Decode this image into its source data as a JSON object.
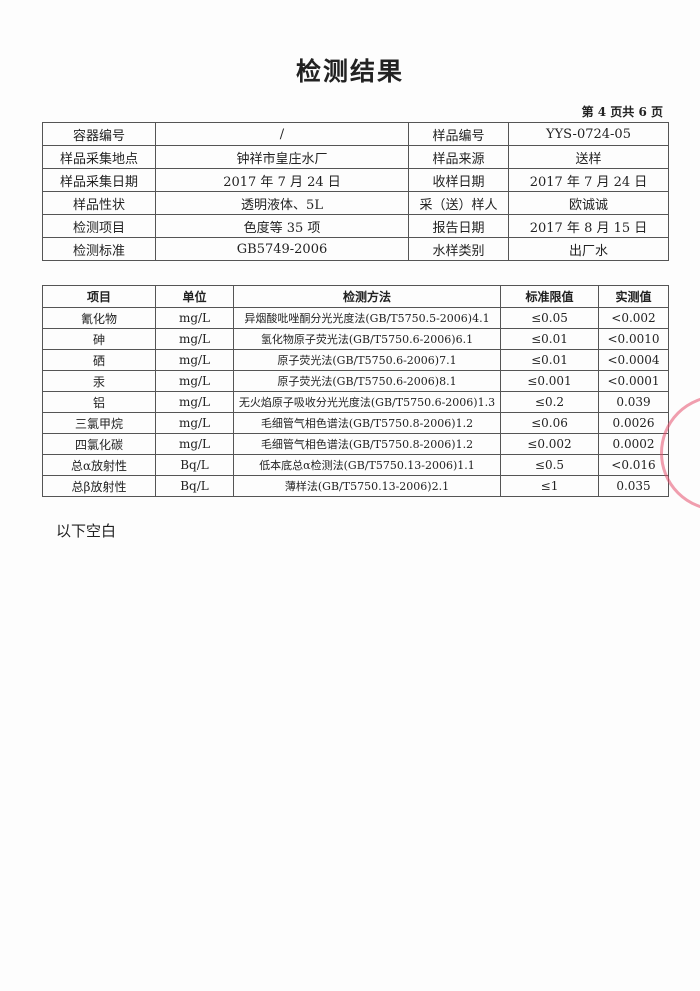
{
  "title": "检测结果",
  "page_info": "第 4 页共 6 页",
  "info_table": [
    [
      "容器编号",
      "/",
      "样品编号",
      "YYS-0724-05"
    ],
    [
      "样品采集地点",
      "钟祥市皇庄水厂",
      "样品来源",
      "送样"
    ],
    [
      "样品采集日期",
      "2017 年 7 月 24 日",
      "收样日期",
      "2017 年 7 月 24 日"
    ],
    [
      "样品性状",
      "透明液体、5L",
      "采（送）样人",
      "欧诚诚"
    ],
    [
      "检测项目",
      "色度等 35 项",
      "报告日期",
      "2017 年 8 月 15 日"
    ],
    [
      "检测标准",
      "GB5749-2006",
      "水样类别",
      "出厂水"
    ]
  ],
  "results_table": {
    "headers": [
      "项目",
      "单位",
      "检测方法",
      "标准限值",
      "实测值"
    ],
    "rows": [
      [
        "氰化物",
        "mg/L",
        "异烟酸吡唑酮分光光度法(GB/T5750.5-2006)4.1",
        "≤0.05",
        "<0.002"
      ],
      [
        "砷",
        "mg/L",
        "氢化物原子荧光法(GB/T5750.6-2006)6.1",
        "≤0.01",
        "<0.0010"
      ],
      [
        "硒",
        "mg/L",
        "原子荧光法(GB/T5750.6-2006)7.1",
        "≤0.01",
        "<0.0004"
      ],
      [
        "汞",
        "mg/L",
        "原子荧光法(GB/T5750.6-2006)8.1",
        "≤0.001",
        "<0.0001"
      ],
      [
        "铝",
        "mg/L",
        "无火焰原子吸收分光光度法(GB/T5750.6-2006)1.3",
        "≤0.2",
        "0.039"
      ],
      [
        "三氯甲烷",
        "mg/L",
        "毛细管气相色谱法(GB/T5750.8-2006)1.2",
        "≤0.06",
        "0.0026"
      ],
      [
        "四氯化碳",
        "mg/L",
        "毛细管气相色谱法(GB/T5750.8-2006)1.2",
        "≤0.002",
        "0.0002"
      ],
      [
        "总α放射性",
        "Bq/L",
        "低本底总α检测法(GB/T5750.13-2006)1.1",
        "≤0.5",
        "<0.016"
      ],
      [
        "总β放射性",
        "Bq/L",
        "薄样法(GB/T5750.13-2006)2.1",
        "≤1",
        "0.035"
      ]
    ]
  },
  "footer_note": "以下空白",
  "stamp_color": "#e6506e"
}
